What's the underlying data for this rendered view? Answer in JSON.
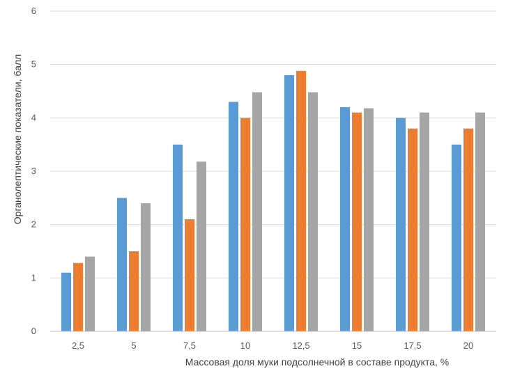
{
  "chart_data": {
    "type": "bar",
    "title": "",
    "xlabel": "Массовая доля муки подсолнечной в составе продукта, %",
    "ylabel": "Органолептические показатели, балл",
    "categories": [
      "2,5",
      "5",
      "7,5",
      "10",
      "12,5",
      "15",
      "17,5",
      "20"
    ],
    "ylim": [
      0,
      6
    ],
    "yticks": [
      "0",
      "1",
      "2",
      "3",
      "4",
      "5",
      "6"
    ],
    "grid": true,
    "legend": "none",
    "series": [
      {
        "color": "#5b9bd5",
        "values": [
          1.1,
          2.5,
          3.5,
          4.3,
          4.8,
          4.2,
          4.0,
          3.5
        ]
      },
      {
        "color": "#ed7d31",
        "values": [
          1.28,
          1.5,
          2.1,
          4.0,
          4.88,
          4.1,
          3.8,
          3.8
        ]
      },
      {
        "color": "#a5a5a5",
        "values": [
          1.4,
          2.4,
          3.18,
          4.48,
          4.48,
          4.18,
          4.1,
          4.1
        ]
      }
    ]
  }
}
